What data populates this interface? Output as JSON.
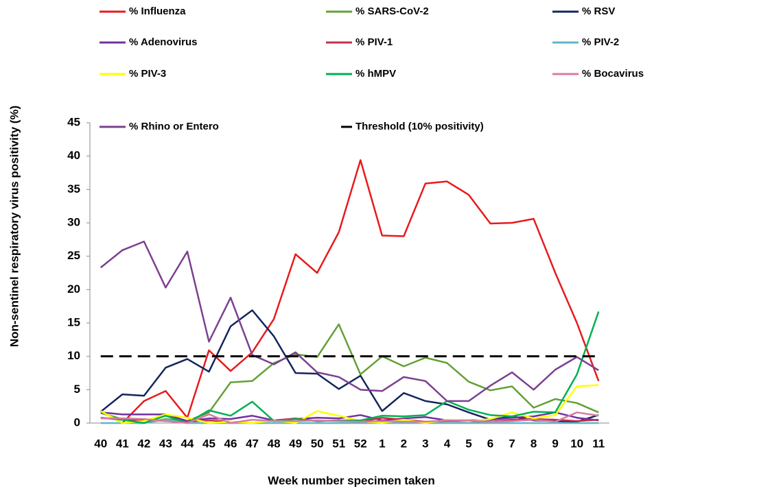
{
  "chart_data": {
    "type": "line",
    "x_label": "Week number specimen taken",
    "y_label": "Non-sentinel respiratory virus positivity (%)",
    "categories": [
      "40",
      "41",
      "42",
      "43",
      "44",
      "45",
      "46",
      "47",
      "48",
      "49",
      "50",
      "51",
      "52",
      "1",
      "2",
      "3",
      "4",
      "5",
      "6",
      "7",
      "8",
      "9",
      "10",
      "11"
    ],
    "ylim": [
      0,
      45
    ],
    "yticks": [
      0,
      5,
      10,
      15,
      20,
      25,
      30,
      35,
      40,
      45
    ],
    "grid": false,
    "series": [
      {
        "name": "% Influenza",
        "color": "#e8191b",
        "values": [
          1.8,
          0,
          3.3,
          4.8,
          0.8,
          10.9,
          7.8,
          10.6,
          15.6,
          25.3,
          22.5,
          28.6,
          39.4,
          28.1,
          28.0,
          35.9,
          36.2,
          34.2,
          29.9,
          30.0,
          30.6,
          22.5,
          15.0,
          6.3
        ]
      },
      {
        "name": "% SARS-CoV-2",
        "color": "#62a034",
        "values": [
          1.5,
          0.6,
          0,
          0.6,
          0.3,
          1.6,
          6.1,
          6.3,
          9.0,
          10.3,
          9.9,
          14.8,
          7.3,
          10.0,
          8.5,
          9.8,
          9.0,
          6.2,
          4.9,
          5.5,
          2.3,
          3.6,
          3.0,
          1.6
        ]
      },
      {
        "name": "% RSV",
        "color": "#14245c",
        "values": [
          1.7,
          4.3,
          4.1,
          8.3,
          9.6,
          7.7,
          14.5,
          16.9,
          13.0,
          7.5,
          7.4,
          5.1,
          7.1,
          1.8,
          4.5,
          3.3,
          2.8,
          1.6,
          0.5,
          1.0,
          0.4,
          0.3,
          0.2,
          1.2
        ]
      },
      {
        "name": "% Adenovirus",
        "color": "#7030a0",
        "values": [
          1.6,
          1.3,
          1.3,
          1.3,
          0.3,
          0.7,
          0.6,
          1.1,
          0.4,
          0.6,
          0.8,
          0.7,
          1.2,
          0.4,
          0.7,
          0.9,
          0.4,
          0.4,
          0.5,
          0.8,
          1.0,
          1.6,
          0.8,
          0.4
        ]
      },
      {
        "name": "% PIV-1",
        "color": "#c0304d",
        "values": [
          0.8,
          0.5,
          0.5,
          0.3,
          0.2,
          0.4,
          0.2,
          0,
          0.4,
          0.7,
          0.3,
          0.4,
          0.2,
          0.8,
          0.5,
          0.2,
          0.3,
          0.3,
          0.2,
          0.5,
          0.6,
          0.5,
          0.3,
          0.5
        ]
      },
      {
        "name": "% PIV-2",
        "color": "#5fb6c8",
        "values": [
          0,
          0,
          0,
          0.5,
          0,
          0,
          0,
          0,
          0,
          0,
          0,
          0,
          0,
          0,
          0,
          0,
          0,
          0,
          0,
          0,
          0,
          0,
          0,
          0
        ]
      },
      {
        "name": "% PIV-3",
        "color": "#ffff00",
        "values": [
          1.8,
          0,
          0.3,
          1.3,
          0.8,
          0,
          0.2,
          0,
          0.4,
          0,
          1.8,
          1.1,
          0.3,
          0,
          0.5,
          0,
          0.5,
          0.3,
          0.6,
          1.6,
          0.7,
          1.2,
          5.5,
          5.7
        ]
      },
      {
        "name": "% hMPV",
        "color": "#00b050",
        "values": [
          0.8,
          0.5,
          0,
          1.1,
          0,
          1.9,
          1.1,
          3.2,
          0.3,
          0.6,
          0.3,
          0.4,
          0.4,
          1.1,
          1.0,
          1.2,
          3.3,
          2.0,
          1.2,
          1.0,
          1.7,
          1.6,
          7.3,
          16.7
        ]
      },
      {
        "name": "% Bocavirus",
        "color": "#d87aa4",
        "values": [
          0.7,
          0.7,
          0.6,
          0.3,
          0,
          1.3,
          0,
          0.5,
          0.3,
          0.3,
          0.4,
          0.3,
          0.2,
          0.3,
          0.2,
          0.2,
          0.4,
          0.4,
          0.2,
          0.3,
          0.5,
          0.2,
          1.6,
          1.1
        ]
      },
      {
        "name": "% Rhino or Entero",
        "color": "#7b3f8f",
        "values": [
          23.3,
          25.9,
          27.2,
          20.3,
          25.7,
          12.2,
          18.8,
          10.2,
          8.8,
          10.6,
          7.6,
          6.9,
          5.0,
          4.8,
          6.9,
          6.3,
          3.3,
          3.3,
          5.6,
          7.6,
          5.0,
          8.0,
          9.9,
          7.9
        ]
      },
      {
        "name": "Threshold (10% positivity)",
        "color": "#000000",
        "dashed": true,
        "values": [
          10,
          10,
          10,
          10,
          10,
          10,
          10,
          10,
          10,
          10,
          10,
          10,
          10,
          10,
          10,
          10,
          10,
          10,
          10,
          10,
          10,
          10,
          10,
          10
        ]
      }
    ]
  }
}
